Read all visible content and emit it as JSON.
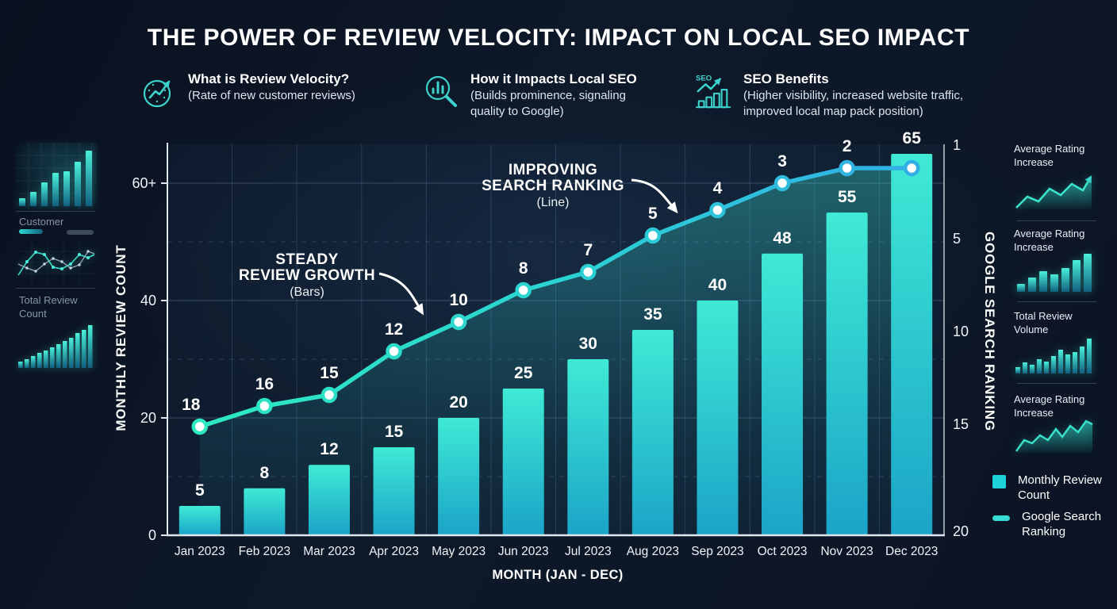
{
  "title": "THE POWER OF REVIEW VELOCITY: IMPACT ON LOCAL SEO IMPACT",
  "header": {
    "items": [
      {
        "icon": "trend-dial-icon",
        "title": "What is Review Velocity?",
        "subtitle": "(Rate of new customer reviews)"
      },
      {
        "icon": "magnifier-chart-icon",
        "title": "How it Impacts Local SEO",
        "subtitle": "(Builds prominence, signaling quality to Google)"
      },
      {
        "icon": "seo-growth-icon",
        "title": "SEO Benefits",
        "subtitle": "(Higher visibility, increased website traffic, improved local map pack position)"
      }
    ]
  },
  "left_sidebar": {
    "labels": [
      "Customer",
      "Total Review Count"
    ]
  },
  "right_sidebar": {
    "labels": [
      "Average Rating Increase",
      "Average Rating Increase",
      "Total Review Volume",
      "Average Rating Increase"
    ]
  },
  "legend": {
    "items": [
      {
        "swatch": "bar-square",
        "label": "Monthly Review Count"
      },
      {
        "swatch": "line-pill",
        "label": "Google Search Ranking"
      }
    ]
  },
  "chart_data": {
    "type": "bar+line combo",
    "categories": [
      "Jan 2023",
      "Feb 2023",
      "Mar 2023",
      "Apr 2023",
      "May 2023",
      "Jun 2023",
      "Jul 2023",
      "Aug 2023",
      "Sep 2023",
      "Oct 2023",
      "Nov 2023",
      "Dec 2023"
    ],
    "series": [
      {
        "name": "Monthly Review Count",
        "type": "bar",
        "values": [
          5,
          8,
          12,
          15,
          20,
          25,
          30,
          35,
          40,
          48,
          55,
          65
        ]
      },
      {
        "name": "Google Search Ranking",
        "type": "line",
        "values": [
          18,
          16,
          15,
          12,
          10,
          8,
          7,
          5,
          4,
          3,
          2,
          2
        ],
        "point_labels": [
          "18",
          "16",
          "15",
          "12",
          "10",
          "8",
          "7",
          "5",
          "4",
          "3",
          "2",
          ""
        ]
      }
    ],
    "xlabel": "MONTH (JAN - DEC)",
    "left_axis": {
      "label": "MONTHLY REVIEW COUNT",
      "ticks": [
        "0",
        "20",
        "40",
        "60+"
      ],
      "range": [
        0,
        66
      ]
    },
    "right_axis": {
      "label": "GOOGLE SEARCH RANKING",
      "ticks": [
        "1",
        "5",
        "10",
        "15",
        "20"
      ],
      "range": [
        1,
        20
      ],
      "inverted": true
    },
    "grid": "horizontal solid at 20/40/60, dashed at 10/30/50, vertical month separators",
    "legend_position": "bottom-right outside plot",
    "annotations": [
      {
        "line1": "STEADY",
        "line2": "REVIEW GROWTH",
        "sub": "(Bars)",
        "target": "bars"
      },
      {
        "line1": "IMPROVING",
        "line2": "SEARCH RANKING",
        "sub": "(Line)",
        "target": "line"
      }
    ]
  },
  "colors": {
    "background": "#0c1424",
    "bar_top": "#3fead5",
    "bar_bottom": "#1ba4c8",
    "line_start": "#2de9c0",
    "line_end": "#31aee6",
    "accent": "#2fd9cd",
    "legend_square": "#1ed3d8",
    "legend_pill": "#38dcd4",
    "axis": "#dfe7ef",
    "text_muted": "#8496ab"
  }
}
